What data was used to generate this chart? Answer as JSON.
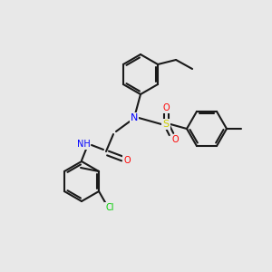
{
  "background_color": "#e8e8e8",
  "bond_color": "#1a1a1a",
  "bond_width": 1.5,
  "atom_colors": {
    "N": "#0000ff",
    "O": "#ff0000",
    "S": "#cccc00",
    "Cl": "#00cc00",
    "H": "#808080",
    "C": "#1a1a1a"
  },
  "font_size": 7,
  "fig_size": [
    3.0,
    3.0
  ],
  "dpi": 100
}
